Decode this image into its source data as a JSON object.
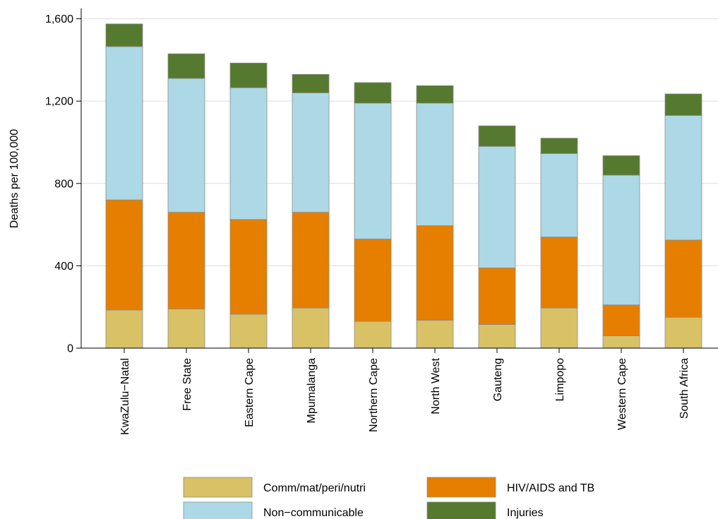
{
  "chart_data": {
    "type": "bar",
    "stacked": true,
    "title": "",
    "xlabel": "",
    "ylabel": "Deaths per 100,000",
    "ylim": [
      0,
      1650
    ],
    "yticks": [
      0,
      400,
      800,
      1200,
      1600
    ],
    "ytick_labels": [
      "0",
      "400",
      "800",
      "1,200",
      "1,600"
    ],
    "grid": true,
    "legend_position": "bottom",
    "categories": [
      "KwaZulu−Natal",
      "Free State",
      "Eastern Cape",
      "Mpumalanga",
      "Northern Cape",
      "North West",
      "Gauteng",
      "Limpopo",
      "Western Cape",
      "South Africa"
    ],
    "series": [
      {
        "name": "Comm/mat/peri/nutri",
        "color": "#d9c265",
        "values": [
          185,
          190,
          165,
          195,
          130,
          135,
          115,
          195,
          60,
          150
        ]
      },
      {
        "name": "HIV/AIDS and TB",
        "color": "#e67e00",
        "values": [
          535,
          470,
          460,
          465,
          400,
          460,
          275,
          345,
          150,
          375
        ]
      },
      {
        "name": "Non−communicable",
        "color": "#add8e6",
        "values": [
          745,
          650,
          640,
          580,
          660,
          595,
          590,
          405,
          630,
          605
        ]
      },
      {
        "name": "Injuries",
        "color": "#557a2f",
        "values": [
          110,
          120,
          120,
          90,
          100,
          85,
          100,
          75,
          95,
          105
        ]
      }
    ]
  }
}
